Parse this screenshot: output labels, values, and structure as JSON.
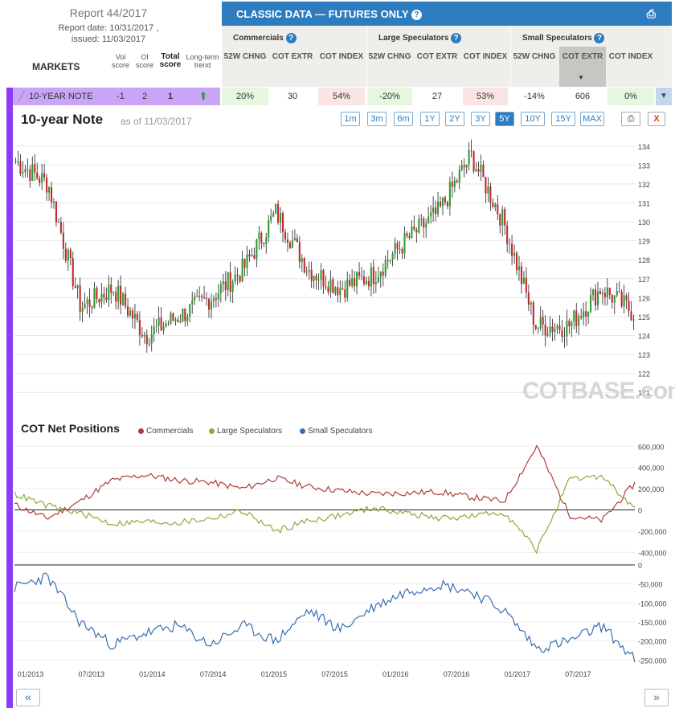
{
  "header": {
    "report_title": "Report 44/2017",
    "report_date": "Report date: 10/31/2017 ,",
    "issued": "issued: 11/03/2017",
    "markets_label": "MARKETS",
    "col_vol": "Vol score",
    "col_oi": "OI score",
    "col_total": "Total score",
    "col_trend": "Long-term trend",
    "panel_title": "CLASSIC DATA — FUTURES ONLY",
    "groups": [
      {
        "label": "Commercials",
        "subs": [
          "52W CHNG",
          "COT EXTR",
          "COT INDEX"
        ]
      },
      {
        "label": "Large Speculators",
        "subs": [
          "52W CHNG",
          "COT EXTR",
          "COT INDEX"
        ]
      },
      {
        "label": "Small Speculators",
        "subs": [
          "52W CHNG",
          "COT EXTR",
          "COT INDEX"
        ]
      }
    ]
  },
  "row": {
    "market": "10-YEAR NOTE",
    "vol": "-1",
    "oi": "2",
    "total": "1",
    "values": [
      "20%",
      "30",
      "54%",
      "-20%",
      "27",
      "53%",
      "-14%",
      "606",
      "0%"
    ]
  },
  "chart_title": "10-year Note",
  "as_of": "as of 11/03/2017",
  "ranges": [
    "1m",
    "3m",
    "6m",
    "1Y",
    "2Y",
    "3Y",
    "5Y",
    "10Y",
    "15Y",
    "MAX"
  ],
  "active_range": "5Y",
  "print_label": "⎙",
  "close_label": "X",
  "watermark": "COTBASE.com",
  "cot_title": "COT Net Positions",
  "nav_prev": "«",
  "nav_next": "»",
  "colors": {
    "accent": "#2d7cbf",
    "side": "#8c3cf5",
    "up": "#2e9a2e",
    "down": "#c0282b",
    "commercials": "#b03c3c",
    "large": "#8aab3c",
    "small": "#3a6fb0"
  },
  "chart_data": [
    {
      "type": "candlestick",
      "title": "10-year Note",
      "x": [
        "01/2013",
        "04/2013",
        "07/2013",
        "10/2013",
        "01/2014",
        "04/2014",
        "07/2014",
        "10/2014",
        "01/2015",
        "04/2015",
        "07/2015",
        "10/2015",
        "01/2016",
        "04/2016",
        "07/2016",
        "10/2016",
        "01/2017",
        "04/2017",
        "07/2017",
        "10/2017"
      ],
      "close": [
        133.2,
        132.0,
        125.5,
        126.5,
        124.0,
        125.0,
        126.0,
        127.5,
        130.5,
        127.5,
        126.5,
        127.2,
        129.0,
        130.5,
        133.5,
        130.0,
        124.5,
        124.5,
        126.5,
        125.2
      ],
      "y_ticks": [
        121,
        122,
        123,
        124,
        125,
        126,
        127,
        128,
        129,
        130,
        131,
        132,
        133,
        134
      ],
      "ylim": [
        120.5,
        134.5
      ],
      "x_ticks": [
        "01/2013",
        "07/2013",
        "01/2014",
        "07/2014",
        "01/2015",
        "07/2015",
        "01/2016",
        "07/2016",
        "01/2017",
        "07/2017"
      ]
    },
    {
      "type": "line",
      "title": "COT Net Positions",
      "x": [
        "01/2013",
        "04/2013",
        "07/2013",
        "10/2013",
        "01/2014",
        "04/2014",
        "07/2014",
        "10/2014",
        "01/2015",
        "04/2015",
        "07/2015",
        "10/2015",
        "01/2016",
        "04/2016",
        "07/2016",
        "10/2016",
        "01/2017",
        "04/2017",
        "07/2017",
        "10/2017"
      ],
      "series": [
        {
          "name": "Commercials",
          "values": [
            50000,
            -80000,
            80000,
            280000,
            330000,
            280000,
            260000,
            200000,
            300000,
            220000,
            180000,
            150000,
            160000,
            170000,
            120000,
            80000,
            600000,
            -50000,
            -100000,
            250000
          ]
        },
        {
          "name": "Large Speculators",
          "values": [
            150000,
            40000,
            -30000,
            -130000,
            -110000,
            -120000,
            -80000,
            -10000,
            -200000,
            -100000,
            -50000,
            20000,
            -30000,
            -80000,
            -60000,
            -20000,
            -380000,
            280000,
            320000,
            0
          ]
        }
      ],
      "y_ticks": [
        -400000,
        -200000,
        0,
        200000,
        400000,
        600000
      ],
      "ylim": [
        -420000,
        640000
      ]
    },
    {
      "type": "line",
      "x": [
        "01/2013",
        "04/2013",
        "07/2013",
        "10/2013",
        "01/2014",
        "04/2014",
        "07/2014",
        "10/2014",
        "01/2015",
        "04/2015",
        "07/2015",
        "10/2015",
        "01/2016",
        "04/2016",
        "07/2016",
        "10/2016",
        "01/2017",
        "04/2017",
        "07/2017",
        "10/2017"
      ],
      "series": [
        {
          "name": "Small Speculators",
          "values": [
            -60000,
            -30000,
            -150000,
            -210000,
            -180000,
            -160000,
            -210000,
            -160000,
            -200000,
            -120000,
            -170000,
            -110000,
            -70000,
            -50000,
            -70000,
            -120000,
            -220000,
            -200000,
            -160000,
            -250000
          ]
        }
      ],
      "y_ticks": [
        -250000,
        -200000,
        -150000,
        -100000,
        -50000,
        0
      ],
      "ylim": [
        -260000,
        0
      ]
    }
  ]
}
